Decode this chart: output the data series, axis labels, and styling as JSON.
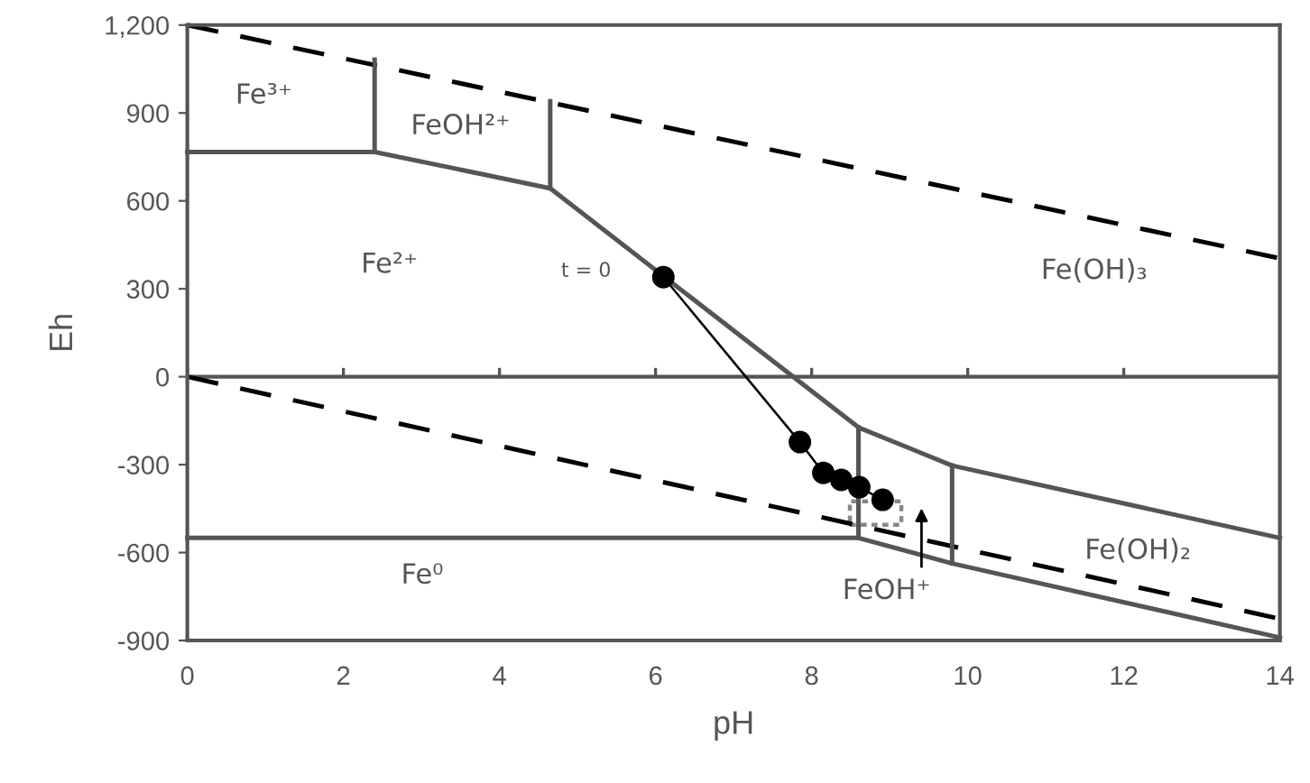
{
  "chart_data": {
    "type": "line",
    "xlabel": "pH",
    "ylabel": "Eh",
    "xlim": [
      0,
      14
    ],
    "xticks": [
      0,
      2,
      4,
      6,
      8,
      10,
      12,
      14
    ],
    "ylim": [
      -900,
      1200
    ],
    "yticks": [
      {
        "value": -900,
        "label": "-900"
      },
      {
        "value": -600,
        "label": "-600"
      },
      {
        "value": -300,
        "label": "-300"
      },
      0,
      300,
      600,
      900,
      {
        "value": 1200,
        "label": "1,200"
      }
    ],
    "grid": false,
    "legend": false,
    "ref_lines": [
      {
        "axis": "y",
        "value": 0,
        "color": "#555555"
      }
    ],
    "series": [
      {
        "x": [
          0,
          14
        ],
        "values": [
          1200,
          404
        ],
        "color": "#000000",
        "line_style": "dashed",
        "marker": "none"
      },
      {
        "x": [
          0,
          14
        ],
        "values": [
          0,
          -826
        ],
        "color": "#000000",
        "line_style": "dashed",
        "marker": "none"
      },
      {
        "x": [
          0,
          2.4,
          4.65,
          8.6,
          9.8,
          14
        ],
        "values": [
          767,
          767,
          643,
          -173,
          -303,
          -550
        ],
        "color": "#555555",
        "line_style": "solid",
        "marker": "none"
      },
      {
        "x": [
          2.4,
          2.4
        ],
        "values": [
          767,
          1082
        ],
        "color": "#555555",
        "line_style": "solid",
        "marker": "none"
      },
      {
        "x": [
          4.65,
          4.65
        ],
        "values": [
          643,
          940
        ],
        "color": "#555555",
        "line_style": "solid",
        "marker": "none"
      },
      {
        "x": [
          0,
          8.6,
          9.8,
          14
        ],
        "values": [
          -550,
          -550,
          -637,
          -890
        ],
        "color": "#555555",
        "line_style": "solid",
        "marker": "none"
      },
      {
        "x": [
          8.6,
          8.6
        ],
        "values": [
          -173,
          -550
        ],
        "color": "#555555",
        "line_style": "solid",
        "marker": "none"
      },
      {
        "x": [
          9.8,
          9.8
        ],
        "values": [
          -303,
          -637
        ],
        "color": "#555555",
        "line_style": "solid",
        "marker": "none"
      },
      {
        "x": [
          6.1,
          7.85,
          8.15,
          8.38,
          8.61,
          8.91
        ],
        "values": [
          340,
          -223,
          -328,
          -352,
          -377,
          -420
        ],
        "color": "#000000",
        "line_style": "solid",
        "marker": "circle"
      }
    ],
    "annotations": [
      "Fe³⁺",
      "FeOH²⁺",
      "Fe²⁺",
      "t = 0",
      "Fe(OH)₃",
      "Fe(OH)₂",
      "Fe⁰",
      "FeOH⁺"
    ]
  }
}
